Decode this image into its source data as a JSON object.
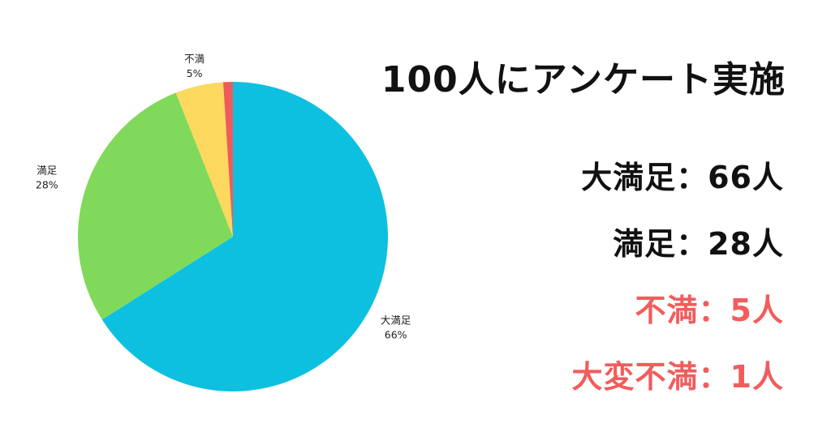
{
  "title": "100人にアンケート実施",
  "stats": [
    {
      "label": "大満足",
      "sep": "：",
      "value": "66人",
      "color": "#111111"
    },
    {
      "label": "満足",
      "sep": "：",
      "value": "28人",
      "color": "#111111"
    },
    {
      "label": "不満",
      "sep": "：",
      "value": "5人",
      "color": "#f25c5c"
    },
    {
      "label": "大変不満",
      "sep": "：",
      "value": "1人",
      "color": "#f25c5c"
    }
  ],
  "chart_data": {
    "type": "pie",
    "categories": [
      "大満足",
      "満足",
      "不満",
      "大変不満"
    ],
    "values": [
      66,
      28,
      5,
      1
    ],
    "colors": [
      "#0ec0e0",
      "#80d95a",
      "#fcd95e",
      "#ef5b5b"
    ],
    "data_labels": [
      {
        "name": "大満足",
        "pct": "66%"
      },
      {
        "name": "満足",
        "pct": "28%"
      },
      {
        "name": "不満",
        "pct": "5%"
      }
    ]
  }
}
